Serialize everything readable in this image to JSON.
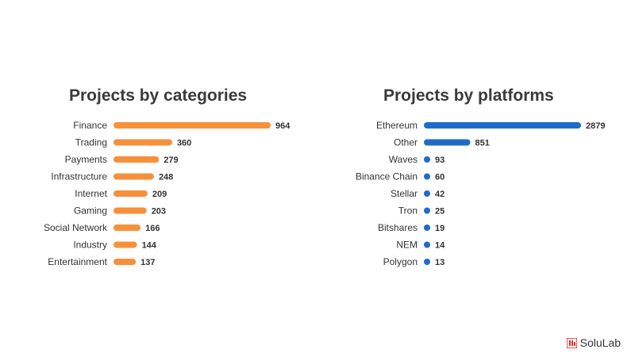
{
  "colors": {
    "categories_bar": "#f7903a",
    "platforms_bar": "#1f6bc9",
    "logo_accent": "#d9302c"
  },
  "logo": {
    "text": "SoluLab",
    "icon": "solulab-logo-icon"
  },
  "chart_data": [
    {
      "type": "bar",
      "orientation": "horizontal",
      "title": "Projects by categories",
      "categories": [
        "Finance",
        "Trading",
        "Payments",
        "Infrastructure",
        "Internet",
        "Gaming",
        "Social Network",
        "Industry",
        "Entertainment"
      ],
      "values": [
        964,
        360,
        279,
        248,
        209,
        203,
        166,
        144,
        137
      ],
      "grid": false,
      "legend": "none",
      "data_labels": true
    },
    {
      "type": "bar",
      "orientation": "horizontal",
      "title": "Projects by platforms",
      "categories": [
        "Ethereum",
        "Other",
        "Waves",
        "Binance Chain",
        "Stellar",
        "Tron",
        "Bitshares",
        "NEM",
        "Polygon"
      ],
      "values": [
        2879,
        851,
        93,
        60,
        42,
        25,
        19,
        14,
        13
      ],
      "grid": false,
      "legend": "none",
      "data_labels": true
    }
  ]
}
